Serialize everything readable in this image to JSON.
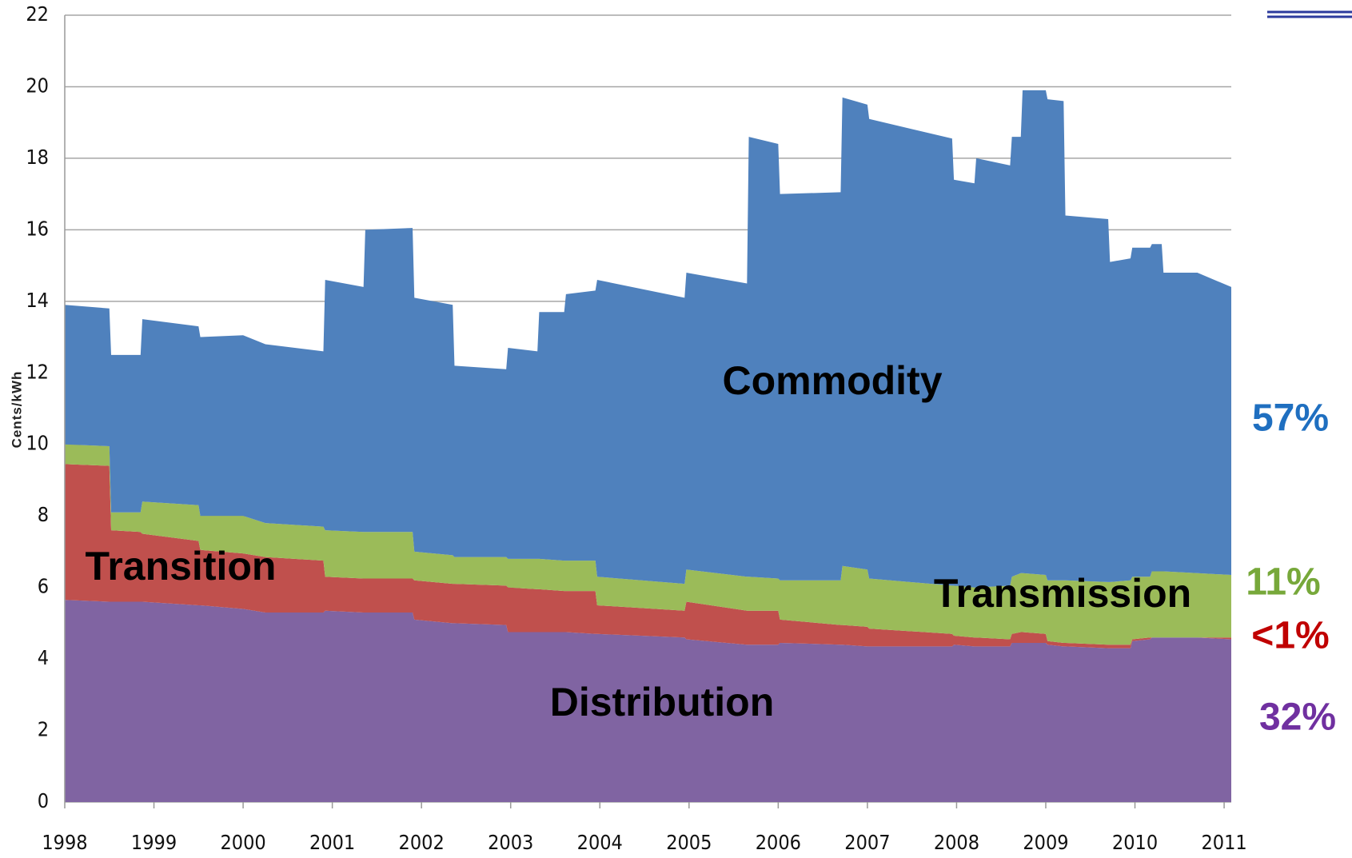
{
  "chart_data": {
    "type": "stacked_area",
    "y_label": "Cents/kWh",
    "xlim": [
      1998,
      2011.08
    ],
    "xticks": [
      1998,
      1999,
      2000,
      2001,
      2002,
      2003,
      2004,
      2005,
      2006,
      2007,
      2008,
      2009,
      2010,
      2011
    ],
    "ylim": [
      0,
      22
    ],
    "yticks": [
      0,
      2,
      4,
      6,
      8,
      10,
      12,
      14,
      16,
      18,
      20,
      22
    ],
    "grid": true,
    "x": [
      1998.0,
      1998.5,
      1998.52,
      1998.85,
      1998.87,
      1999.5,
      1999.52,
      2000.0,
      2000.25,
      2000.9,
      2000.92,
      2001.35,
      2001.37,
      2001.9,
      2001.92,
      2002.35,
      2002.37,
      2002.95,
      2002.97,
      2003.3,
      2003.32,
      2003.6,
      2003.62,
      2003.95,
      2003.97,
      2004.95,
      2004.97,
      2005.65,
      2005.67,
      2006.0,
      2006.02,
      2006.7,
      2006.72,
      2007.0,
      2007.02,
      2007.95,
      2007.97,
      2008.2,
      2008.22,
      2008.6,
      2008.62,
      2008.72,
      2008.74,
      2009.0,
      2009.02,
      2009.2,
      2009.22,
      2009.7,
      2009.72,
      2009.95,
      2009.97,
      2010.17,
      2010.19,
      2010.3,
      2010.32,
      2010.7,
      2011.08
    ],
    "series": [
      {
        "name": "Distribution",
        "color": "#8064a2",
        "share_label": "32%",
        "share_color": "#7030a0",
        "values": [
          5.65,
          5.6,
          5.6,
          5.6,
          5.6,
          5.5,
          5.5,
          5.4,
          5.3,
          5.3,
          5.35,
          5.3,
          5.3,
          5.3,
          5.1,
          5.0,
          5.0,
          4.95,
          4.75,
          4.75,
          4.75,
          4.75,
          4.75,
          4.7,
          4.7,
          4.6,
          4.55,
          4.4,
          4.4,
          4.4,
          4.45,
          4.4,
          4.4,
          4.35,
          4.35,
          4.35,
          4.4,
          4.35,
          4.35,
          4.35,
          4.45,
          4.45,
          4.45,
          4.45,
          4.4,
          4.35,
          4.35,
          4.3,
          4.3,
          4.3,
          4.5,
          4.55,
          4.6,
          4.6,
          4.6,
          4.6,
          4.55
        ]
      },
      {
        "name": "Transition",
        "color": "#c0504d",
        "share_label": "<1%",
        "share_color": "#c00000",
        "values": [
          3.8,
          3.8,
          2.0,
          1.95,
          1.9,
          1.8,
          1.55,
          1.55,
          1.55,
          1.45,
          0.95,
          0.95,
          0.95,
          0.95,
          1.1,
          1.1,
          1.1,
          1.1,
          1.25,
          1.2,
          1.2,
          1.15,
          1.15,
          1.2,
          0.8,
          0.75,
          1.05,
          0.95,
          0.95,
          0.95,
          0.65,
          0.55,
          0.55,
          0.55,
          0.5,
          0.35,
          0.25,
          0.25,
          0.25,
          0.2,
          0.25,
          0.3,
          0.3,
          0.25,
          0.1,
          0.1,
          0.1,
          0.1,
          0.1,
          0.1,
          0.05,
          0.05,
          0,
          0,
          0,
          0,
          0.05
        ]
      },
      {
        "name": "Transmission",
        "color": "#9bbb59",
        "share_label": "11%",
        "share_color": "#77a83a",
        "values": [
          0.55,
          0.55,
          0.5,
          0.55,
          0.9,
          1.0,
          0.95,
          1.05,
          0.95,
          0.95,
          1.3,
          1.3,
          1.3,
          1.3,
          0.8,
          0.8,
          0.75,
          0.8,
          0.8,
          0.85,
          0.85,
          0.85,
          0.85,
          0.85,
          0.8,
          0.75,
          0.9,
          0.95,
          0.95,
          0.9,
          1.1,
          1.25,
          1.65,
          1.6,
          1.4,
          1.35,
          1.4,
          1.4,
          1.4,
          1.5,
          1.6,
          1.65,
          1.65,
          1.65,
          1.7,
          1.75,
          1.75,
          1.75,
          1.75,
          1.8,
          1.75,
          1.7,
          1.85,
          1.85,
          1.85,
          1.8,
          1.75
        ]
      },
      {
        "name": "Commodity",
        "color": "#4f81bd",
        "share_label": "57%",
        "share_color": "#1f6fc0",
        "values": [
          3.9,
          3.85,
          4.4,
          4.4,
          5.1,
          5.0,
          5.0,
          5.05,
          5.0,
          4.9,
          7.0,
          6.85,
          8.45,
          8.5,
          7.1,
          7.0,
          5.35,
          5.25,
          5.9,
          5.8,
          6.9,
          6.95,
          7.45,
          7.55,
          8.3,
          8.0,
          8.3,
          8.2,
          12.3,
          12.15,
          10.8,
          10.85,
          13.1,
          13.0,
          12.85,
          12.5,
          11.35,
          11.3,
          12.0,
          11.75,
          12.3,
          12.2,
          13.5,
          13.55,
          13.45,
          13.4,
          10.2,
          10.15,
          8.95,
          9.0,
          9.2,
          9.2,
          9.15,
          9.15,
          8.35,
          8.4,
          8.05
        ]
      }
    ]
  }
}
